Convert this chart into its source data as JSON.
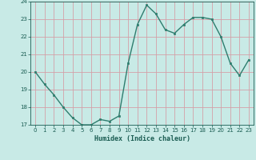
{
  "x": [
    0,
    1,
    2,
    3,
    4,
    5,
    6,
    7,
    8,
    9,
    10,
    11,
    12,
    13,
    14,
    15,
    16,
    17,
    18,
    19,
    20,
    21,
    22,
    23
  ],
  "y": [
    20.0,
    19.3,
    18.7,
    18.0,
    17.4,
    17.0,
    17.0,
    17.3,
    17.2,
    17.5,
    20.5,
    22.7,
    23.8,
    23.3,
    22.4,
    22.2,
    22.7,
    23.1,
    23.1,
    23.0,
    22.0,
    20.5,
    19.8,
    20.7
  ],
  "line_color": "#2e7d6e",
  "marker_color": "#2e7d6e",
  "bg_color": "#c8eae6",
  "grid_color": "#d4a0a8",
  "tick_color": "#1a5c52",
  "xlabel": "Humidex (Indice chaleur)",
  "xlim": [
    -0.5,
    23.5
  ],
  "ylim": [
    17,
    24
  ],
  "yticks": [
    17,
    18,
    19,
    20,
    21,
    22,
    23,
    24
  ],
  "xticks": [
    0,
    1,
    2,
    3,
    4,
    5,
    6,
    7,
    8,
    9,
    10,
    11,
    12,
    13,
    14,
    15,
    16,
    17,
    18,
    19,
    20,
    21,
    22,
    23
  ]
}
